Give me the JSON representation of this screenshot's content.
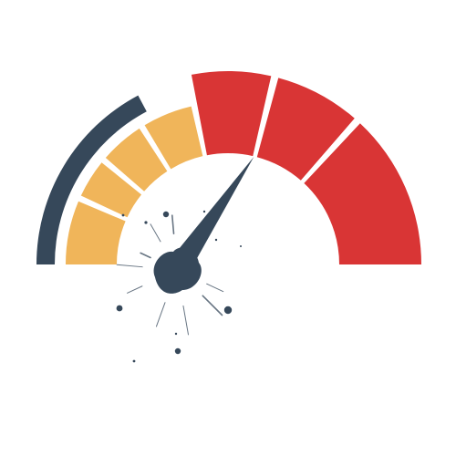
{
  "gauge": {
    "value_fraction": 0.69,
    "segments": [
      {
        "zone": "low",
        "color": "#f0b55a"
      },
      {
        "zone": "low",
        "color": "#f0b55a"
      },
      {
        "zone": "low",
        "color": "#f0b55a"
      },
      {
        "zone": "mid",
        "color": "#f0b55a"
      },
      {
        "zone": "high",
        "color": "#d93535"
      },
      {
        "zone": "high",
        "color": "#d93535"
      },
      {
        "zone": "high",
        "color": "#d93535"
      }
    ],
    "colors": {
      "outer_arc": "#36485a",
      "needle": "#36485a",
      "spark": "#36485a",
      "yellow": "#f0b55a",
      "red": "#d93535"
    },
    "icons": [
      "speedometer-icon",
      "needle-icon",
      "hub-icon"
    ]
  }
}
